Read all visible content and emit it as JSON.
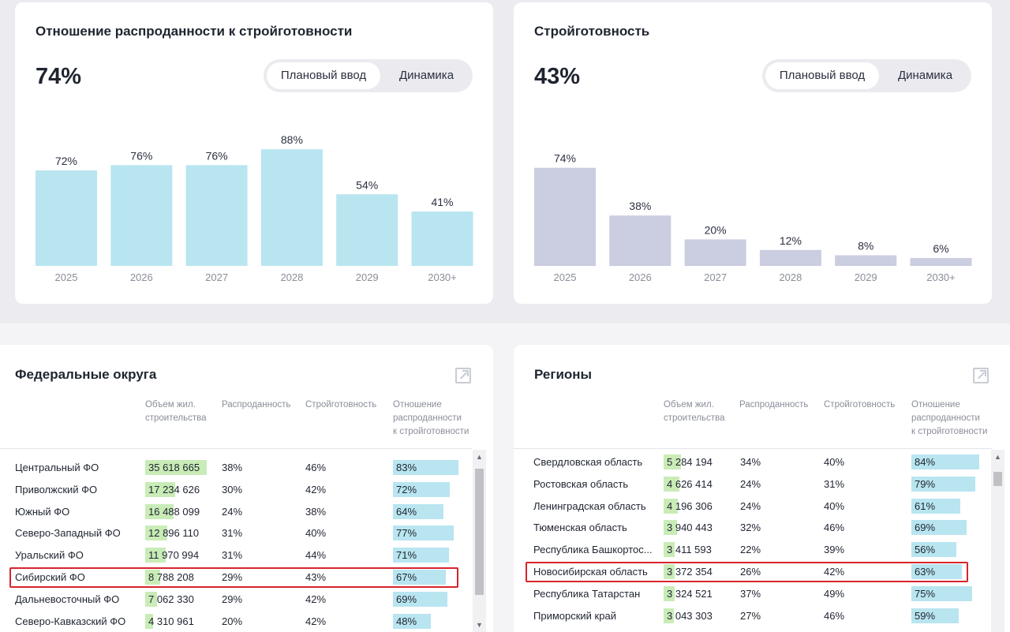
{
  "sold_card": {
    "title": "Отношение распроданности к стройготовности",
    "value": "74%",
    "toggle_active": "Плановый ввод",
    "toggle_other": "Динамика"
  },
  "ready_card": {
    "title": "Стройготовность",
    "value": "43%",
    "toggle_active": "Плановый ввод",
    "toggle_other": "Динамика"
  },
  "chart_data": [
    {
      "type": "bar",
      "title": "Отношение распроданности к стройготовности",
      "categories": [
        "2025",
        "2026",
        "2027",
        "2028",
        "2029",
        "2030+"
      ],
      "values": [
        72,
        76,
        76,
        88,
        54,
        41
      ],
      "value_labels": [
        "72%",
        "76%",
        "76%",
        "88%",
        "54%",
        "41%"
      ],
      "ylim": [
        0,
        100
      ],
      "color": "#b8e5f0",
      "grid": false
    },
    {
      "type": "bar",
      "title": "Стройготовность",
      "categories": [
        "2025",
        "2026",
        "2027",
        "2028",
        "2029",
        "2030+"
      ],
      "values": [
        74,
        38,
        20,
        12,
        8,
        6
      ],
      "value_labels": [
        "74%",
        "38%",
        "20%",
        "12%",
        "8%",
        "6%"
      ],
      "ylim": [
        0,
        100
      ],
      "color": "#cbcde0",
      "grid": false
    }
  ],
  "fd_table": {
    "title": "Федеральные округа",
    "columns": {
      "volume": "Объем жил.\nстроительства",
      "sold": "Распроданность",
      "ready": "Стройготовность",
      "ratio": "Отношение\nраспроданности\nк стройготовности"
    },
    "rows": [
      {
        "name": "Центральный ФО",
        "volume": "35 618 665",
        "volume_share": 1.0,
        "sold": "38%",
        "ready": "46%",
        "ratio": "83%",
        "ratio_value": 83
      },
      {
        "name": "Приволжский ФО",
        "volume": "17 234 626",
        "volume_share": 0.484,
        "sold": "30%",
        "ready": "42%",
        "ratio": "72%",
        "ratio_value": 72
      },
      {
        "name": "Южный ФО",
        "volume": "16 488 099",
        "volume_share": 0.463,
        "sold": "24%",
        "ready": "38%",
        "ratio": "64%",
        "ratio_value": 64
      },
      {
        "name": "Северо-Западный ФО",
        "volume": "12 896 110",
        "volume_share": 0.362,
        "sold": "31%",
        "ready": "40%",
        "ratio": "77%",
        "ratio_value": 77
      },
      {
        "name": "Уральский ФО",
        "volume": "11 970 994",
        "volume_share": 0.336,
        "sold": "31%",
        "ready": "44%",
        "ratio": "71%",
        "ratio_value": 71
      },
      {
        "name": "Сибирский ФО",
        "volume": "8 788 208",
        "volume_share": 0.247,
        "sold": "29%",
        "ready": "43%",
        "ratio": "67%",
        "ratio_value": 67
      },
      {
        "name": "Дальневосточный ФО",
        "volume": "7 062 330",
        "volume_share": 0.198,
        "sold": "29%",
        "ready": "42%",
        "ratio": "69%",
        "ratio_value": 69
      },
      {
        "name": "Северо-Кавказский ФО",
        "volume": "4 310 961",
        "volume_share": 0.121,
        "sold": "20%",
        "ready": "42%",
        "ratio": "48%",
        "ratio_value": 48
      }
    ]
  },
  "reg_table": {
    "title": "Регионы",
    "columns": {
      "volume": "Объем жил.\nстроительства",
      "sold": "Распроданность",
      "ready": "Стройготовность",
      "ratio": "Отношение\nраспроданности\nк стройготовности"
    },
    "rows": [
      {
        "name": "Свердловская область",
        "volume": "5 284 194",
        "volume_share": 0.148,
        "sold": "34%",
        "ready": "40%",
        "ratio": "84%",
        "ratio_value": 84
      },
      {
        "name": "Ростовская область",
        "volume": "4 626 414",
        "volume_share": 0.13,
        "sold": "24%",
        "ready": "31%",
        "ratio": "79%",
        "ratio_value": 79
      },
      {
        "name": "Ленинградская область",
        "volume": "4 196 306",
        "volume_share": 0.118,
        "sold": "24%",
        "ready": "40%",
        "ratio": "61%",
        "ratio_value": 61
      },
      {
        "name": "Тюменская область",
        "volume": "3 940 443",
        "volume_share": 0.111,
        "sold": "32%",
        "ready": "46%",
        "ratio": "69%",
        "ratio_value": 69
      },
      {
        "name": "Республика Башкортос...",
        "volume": "3 411 593",
        "volume_share": 0.096,
        "sold": "22%",
        "ready": "39%",
        "ratio": "56%",
        "ratio_value": 56
      },
      {
        "name": "Новосибирская область",
        "volume": "3 372 354",
        "volume_share": 0.095,
        "sold": "26%",
        "ready": "42%",
        "ratio": "63%",
        "ratio_value": 63
      },
      {
        "name": "Республика Татарстан",
        "volume": "3 324 521",
        "volume_share": 0.093,
        "sold": "37%",
        "ready": "49%",
        "ratio": "75%",
        "ratio_value": 75
      },
      {
        "name": "Приморский край",
        "volume": "3 043 303",
        "volume_share": 0.085,
        "sold": "27%",
        "ready": "46%",
        "ratio": "59%",
        "ratio_value": 59
      }
    ]
  },
  "highlight": {
    "fd_row": "Сибирский ФО",
    "reg_row": "Новосибирская область",
    "color": "#d6252d"
  }
}
